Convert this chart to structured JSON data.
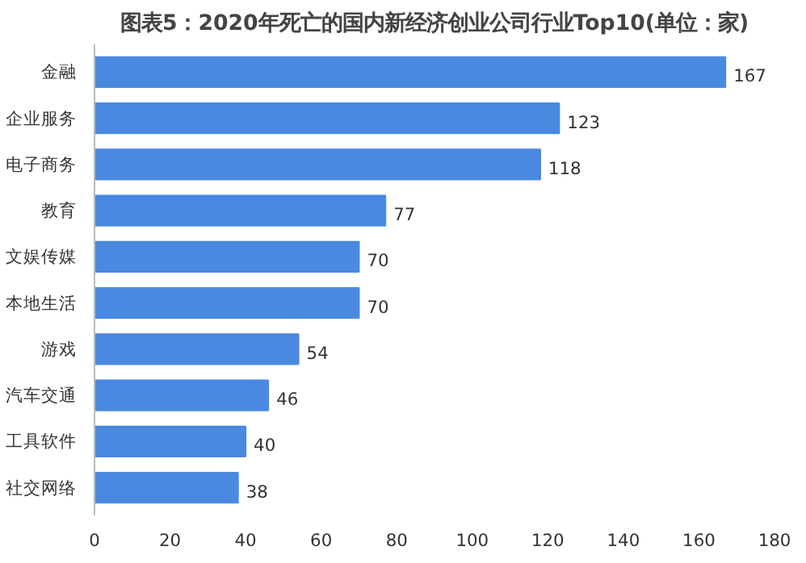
{
  "chart_data": {
    "type": "bar",
    "orientation": "horizontal",
    "title": "图表5：2020年死亡的国内新经济创业公司行业Top10(单位：家)",
    "categories": [
      "金融",
      "企业服务",
      "电子商务",
      "教育",
      "文娱传媒",
      "本地生活",
      "游戏",
      "汽车交通",
      "工具软件",
      "社交网络"
    ],
    "values": [
      167,
      123,
      118,
      77,
      70,
      70,
      54,
      46,
      40,
      38
    ],
    "color": "#4a89e0",
    "xlim": [
      0,
      180
    ],
    "xticks": [
      0,
      20,
      40,
      60,
      80,
      100,
      120,
      140,
      160,
      180
    ],
    "grid": false,
    "data_labels": true
  }
}
